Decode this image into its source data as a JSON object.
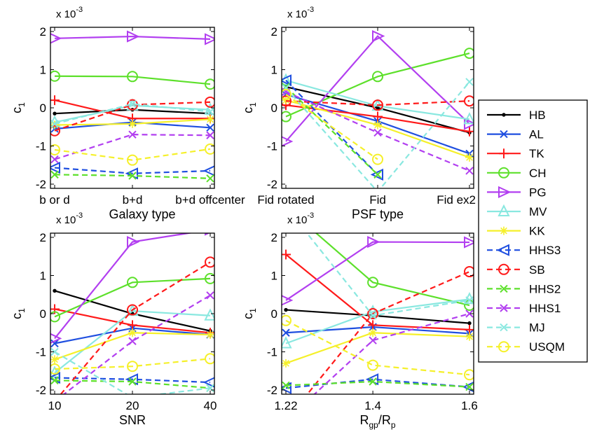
{
  "series_styles": [
    {
      "name": "HB",
      "color": "#000000",
      "dash": "solid",
      "marker": "point"
    },
    {
      "name": "AL",
      "color": "#1f4fe0",
      "dash": "solid",
      "marker": "x"
    },
    {
      "name": "TK",
      "color": "#ff1a1a",
      "dash": "solid",
      "marker": "plus"
    },
    {
      "name": "CH",
      "color": "#5de02b",
      "dash": "solid",
      "marker": "circle"
    },
    {
      "name": "PG",
      "color": "#b23ff0",
      "dash": "solid",
      "marker": "tri-right"
    },
    {
      "name": "MV",
      "color": "#8ae8e0",
      "dash": "solid",
      "marker": "tri-up"
    },
    {
      "name": "KK",
      "color": "#f5f02a",
      "dash": "solid",
      "marker": "star"
    },
    {
      "name": "HHS3",
      "color": "#1f4fe0",
      "dash": "dashed",
      "marker": "tri-left"
    },
    {
      "name": "SB",
      "color": "#ff1a1a",
      "dash": "dashed",
      "marker": "circle"
    },
    {
      "name": "HHS2",
      "color": "#5de02b",
      "dash": "dashed",
      "marker": "x"
    },
    {
      "name": "HHS1",
      "color": "#b23ff0",
      "dash": "dashed",
      "marker": "x"
    },
    {
      "name": "MJ",
      "color": "#8ae8e0",
      "dash": "dashed",
      "marker": "x"
    },
    {
      "name": "USQM",
      "color": "#f5f02a",
      "dash": "dashed",
      "marker": "circle"
    }
  ],
  "legend": [
    "HB",
    "AL",
    "TK",
    "CH",
    "PG",
    "MV",
    "KK",
    "HHS3",
    "SB",
    "HHS2",
    "HHS1",
    "MJ",
    "USQM"
  ],
  "chart_data": [
    {
      "type": "line",
      "panel": "top-left",
      "ylabel": "c",
      "ylabel_sub": "1",
      "scale_label": "x 10",
      "scale_exp": "-3",
      "xlabel": "Galaxy type",
      "categories": [
        "b or d",
        "b+d",
        "b+d offcenter"
      ],
      "x": [
        0,
        1,
        2
      ],
      "xlim": [
        0,
        2
      ],
      "ylim": [
        -2,
        2
      ],
      "yticks": [
        "-2",
        "-1",
        "0",
        "1",
        "2"
      ],
      "series": [
        {
          "name": "HB",
          "values": [
            -0.15,
            -0.05,
            -0.15
          ]
        },
        {
          "name": "AL",
          "values": [
            -0.55,
            -0.38,
            -0.52
          ]
        },
        {
          "name": "TK",
          "values": [
            0.2,
            -0.28,
            -0.28
          ]
        },
        {
          "name": "CH",
          "values": [
            0.83,
            0.82,
            0.62
          ]
        },
        {
          "name": "PG",
          "values": [
            1.82,
            1.87,
            1.8
          ]
        },
        {
          "name": "MV",
          "values": [
            -0.38,
            0.06,
            -0.05
          ]
        },
        {
          "name": "KK",
          "values": [
            -0.45,
            -0.42,
            -0.3
          ]
        },
        {
          "name": "HHS3",
          "values": [
            -1.57,
            -1.72,
            -1.65
          ]
        },
        {
          "name": "SB",
          "values": [
            -0.6,
            0.08,
            0.15
          ]
        },
        {
          "name": "HHS2",
          "values": [
            -1.75,
            -1.78,
            -1.85
          ]
        },
        {
          "name": "HHS1",
          "values": [
            -1.35,
            -0.7,
            -0.72
          ]
        },
        {
          "name": "MJ",
          "values": [
            -0.42,
            0.1,
            -0.1
          ]
        },
        {
          "name": "USQM",
          "values": [
            -1.1,
            -1.37,
            -1.08
          ]
        }
      ]
    },
    {
      "type": "line",
      "panel": "top-right",
      "ylabel": "c",
      "ylabel_sub": "1",
      "scale_label": "x 10",
      "scale_exp": "-3",
      "xlabel": "PSF type",
      "categories": [
        "Fid rotated",
        "Fid",
        "Fid ex2"
      ],
      "x": [
        0,
        1,
        2
      ],
      "xlim": [
        0,
        2
      ],
      "ylim": [
        -2,
        2
      ],
      "yticks": [
        "-2",
        "-1",
        "0",
        "1",
        "2"
      ],
      "series": [
        {
          "name": "HB",
          "values": [
            0.55,
            0.0,
            -0.65
          ]
        },
        {
          "name": "AL",
          "values": [
            0.35,
            -0.35,
            -1.2
          ]
        },
        {
          "name": "TK",
          "values": [
            0.07,
            -0.23,
            -0.62
          ]
        },
        {
          "name": "CH",
          "values": [
            -0.23,
            0.82,
            1.43
          ]
        },
        {
          "name": "PG",
          "values": [
            -0.88,
            1.88,
            -0.42
          ]
        },
        {
          "name": "MV",
          "values": [
            0.72,
            0.05,
            -0.3
          ]
        },
        {
          "name": "KK",
          "values": [
            0.2,
            -0.45,
            -1.3
          ]
        },
        {
          "name": "HHS3",
          "values": [
            0.72,
            -1.75,
            null
          ]
        },
        {
          "name": "SB",
          "values": [
            0.18,
            0.07,
            0.18
          ]
        },
        {
          "name": "HHS2",
          "values": [
            0.55,
            -1.75,
            null
          ]
        },
        {
          "name": "HHS1",
          "values": [
            0.42,
            -0.65,
            -1.65
          ]
        },
        {
          "name": "MJ",
          "values": [
            0.52,
            -2.2,
            0.68
          ]
        },
        {
          "name": "USQM",
          "values": [
            0.35,
            -1.35,
            null
          ]
        }
      ]
    },
    {
      "type": "line",
      "panel": "bottom-left",
      "ylabel": "c",
      "ylabel_sub": "1",
      "scale_label": "x 10",
      "scale_exp": "-3",
      "xlabel": "SNR",
      "categories": [
        "10",
        "20",
        "40"
      ],
      "x": [
        0,
        1,
        2
      ],
      "xlim": [
        0,
        2
      ],
      "ylim": [
        -2,
        2
      ],
      "yticks": [
        "-2",
        "-1",
        "0",
        "1",
        "2"
      ],
      "series": [
        {
          "name": "HB",
          "values": [
            0.6,
            0.0,
            -0.45
          ]
        },
        {
          "name": "AL",
          "values": [
            -0.78,
            -0.38,
            -0.55
          ]
        },
        {
          "name": "TK",
          "values": [
            0.12,
            -0.3,
            -0.5
          ]
        },
        {
          "name": "CH",
          "values": [
            -0.08,
            0.82,
            0.92
          ]
        },
        {
          "name": "PG",
          "values": [
            -0.65,
            1.88,
            2.2
          ]
        },
        {
          "name": "MV",
          "values": [
            -1.55,
            0.07,
            -0.05
          ]
        },
        {
          "name": "KK",
          "values": [
            -1.2,
            -0.5,
            -0.55
          ]
        },
        {
          "name": "HHS3",
          "values": [
            -1.68,
            -1.72,
            -1.8
          ]
        },
        {
          "name": "SB",
          "values": [
            -2.3,
            0.1,
            1.35
          ]
        },
        {
          "name": "HHS2",
          "values": [
            -1.75,
            -1.78,
            -1.95
          ]
        },
        {
          "name": "HHS1",
          "values": [
            -2.3,
            -0.72,
            0.48
          ]
        },
        {
          "name": "MJ",
          "values": [
            -1.0,
            -2.2,
            -1.95
          ]
        },
        {
          "name": "USQM",
          "values": [
            -1.45,
            -1.38,
            -1.18
          ]
        }
      ]
    },
    {
      "type": "line",
      "panel": "bottom-right",
      "ylabel": "c",
      "ylabel_sub": "1",
      "scale_label": "x 10",
      "scale_exp": "-3",
      "xlabel": "R",
      "xlabel_sub1": "gp",
      "xlabel_mid": "/R",
      "xlabel_sub2": "p",
      "categories": [
        "1.22",
        "1.4",
        "1.6"
      ],
      "x": [
        1.22,
        1.4,
        1.6
      ],
      "xlim": [
        1.22,
        1.6
      ],
      "ylim": [
        -2,
        2
      ],
      "yticks": [
        "-2",
        "-1",
        "0",
        "1",
        "2"
      ],
      "series": [
        {
          "name": "HB",
          "values": [
            0.1,
            -0.05,
            -0.25
          ]
        },
        {
          "name": "AL",
          "values": [
            -0.5,
            -0.35,
            -0.52
          ]
        },
        {
          "name": "TK",
          "values": [
            1.55,
            -0.3,
            -0.42
          ]
        },
        {
          "name": "CH",
          "values": [
            2.8,
            0.82,
            0.22
          ]
        },
        {
          "name": "PG",
          "values": [
            0.35,
            1.88,
            1.87
          ]
        },
        {
          "name": "MV",
          "values": [
            -0.78,
            0.05,
            0.38
          ]
        },
        {
          "name": "KK",
          "values": [
            -1.3,
            -0.5,
            -0.6
          ]
        },
        {
          "name": "HHS3",
          "values": [
            -1.95,
            -1.72,
            -1.92
          ]
        },
        {
          "name": "SB",
          "values": [
            -2.8,
            0.0,
            1.1
          ]
        },
        {
          "name": "HHS2",
          "values": [
            -1.88,
            -1.78,
            -1.92
          ]
        },
        {
          "name": "HHS1",
          "values": [
            -2.8,
            -0.7,
            0.0
          ]
        },
        {
          "name": "MJ",
          "values": [
            2.8,
            -0.05,
            0.35
          ]
        },
        {
          "name": "USQM",
          "values": [
            -0.18,
            -1.35,
            -1.6
          ]
        }
      ]
    }
  ]
}
